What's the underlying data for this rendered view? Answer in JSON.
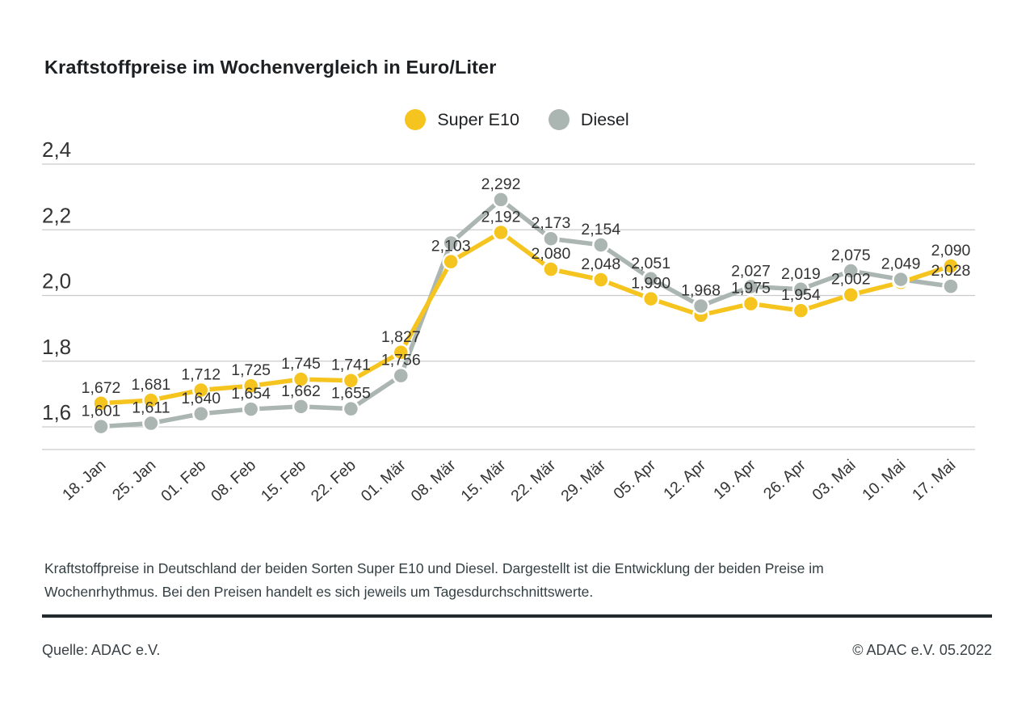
{
  "title": "Kraftstoffpreise im Wochenvergleich in Euro/Liter",
  "legend": [
    {
      "label": "Super E10",
      "color": "#F6C41F"
    },
    {
      "label": "Diesel",
      "color": "#ABB5B2"
    }
  ],
  "colors": {
    "yellow": "#F6C41F",
    "gray": "#ABB5B2",
    "grid": "#CBCBCB",
    "text": "#333333",
    "rule": "#222A2E",
    "title": "#1D2023",
    "background": "#FFFFFF"
  },
  "chart_data": {
    "type": "line",
    "title": "Kraftstoffpreise im Wochenvergleich in Euro/Liter",
    "xlabel": "",
    "ylabel": "Euro/Liter",
    "ylim": [
      1.5,
      2.45
    ],
    "grid": true,
    "legend_position": "top-center",
    "x_labels": [
      "18. Jan",
      "25. Jan",
      "01. Feb",
      "08. Feb",
      "15. Feb",
      "22. Feb",
      "01. Mär",
      "08. Mär",
      "15. Mär",
      "22. Mär",
      "29. Mär",
      "05. Apr",
      "12. Apr",
      "19. Apr",
      "26. Apr",
      "03. Mai",
      "10. Mai",
      "17. Mai"
    ],
    "y_ticks": [
      {
        "value": 2.4,
        "label": "2,4"
      },
      {
        "value": 2.2,
        "label": "2,2"
      },
      {
        "value": 2.0,
        "label": "2,0"
      },
      {
        "value": 1.8,
        "label": "1,8"
      },
      {
        "value": 1.6,
        "label": "1,6"
      }
    ],
    "series": [
      {
        "name": "Super E10",
        "color": "#F6C41F",
        "values": [
          1.672,
          1.681,
          1.712,
          1.725,
          1.745,
          1.741,
          1.827,
          2.103,
          2.192,
          2.08,
          2.048,
          1.99,
          1.94,
          1.975,
          1.954,
          2.002,
          2.04,
          2.09
        ],
        "labels": [
          "1,672",
          "1,681",
          "1,712",
          "1,725",
          "1,745",
          "1,741",
          "1,827",
          "2,103",
          "2,192",
          "2,080",
          "2,048",
          "1,990",
          null,
          "1,975",
          "1,954",
          "2,002",
          null,
          "2,090"
        ]
      },
      {
        "name": "Diesel",
        "color": "#ABB5B2",
        "values": [
          1.601,
          1.611,
          1.64,
          1.654,
          1.662,
          1.655,
          1.756,
          2.16,
          2.292,
          2.173,
          2.154,
          2.051,
          1.968,
          2.027,
          2.019,
          2.075,
          2.049,
          2.028
        ],
        "labels": [
          "1,601",
          "1,611",
          "1,640",
          "1,654",
          "1,662",
          "1,655",
          "1,756",
          null,
          "2,292",
          "2,173",
          "2,154",
          "2,051",
          "1,968",
          "2,027",
          "2,019",
          "2,075",
          "2,049",
          "2,028"
        ]
      }
    ]
  },
  "caption": {
    "text": "Kraftstoffpreise in Deutschland der beiden Sorten Super E10 und Diesel. Dargestellt ist die Entwicklung der beiden Preise im Wochenrhythmus. Bei den Preisen handelt es sich jeweils um Tagesdurchschnittswerte."
  },
  "footer": {
    "source": "Quelle: ADAC e.V.",
    "copyright": "© ADAC e.V. 05.2022"
  }
}
